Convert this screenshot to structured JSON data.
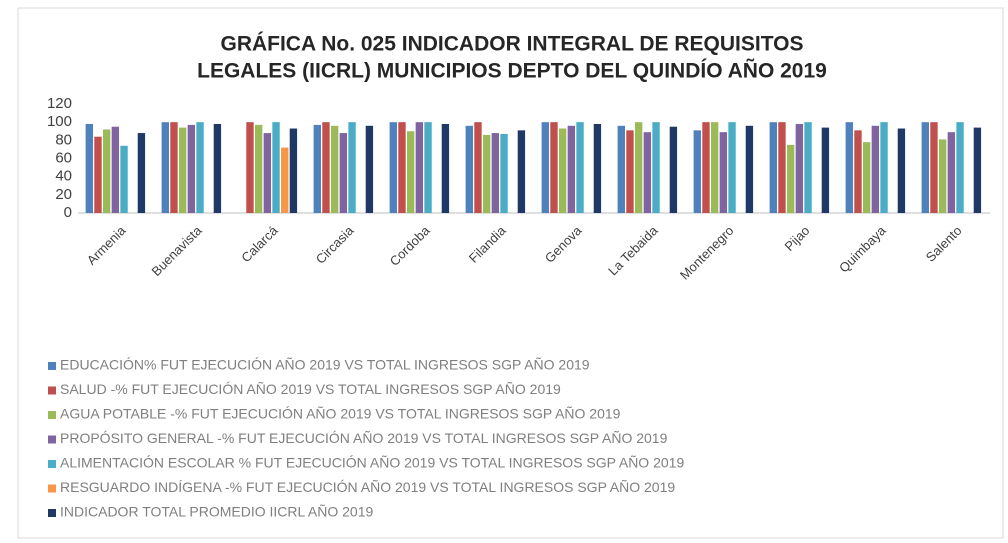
{
  "chart_data": {
    "type": "bar",
    "title": [
      "GRÁFICA  No. 025 INDICADOR INTEGRAL  DE REQUISITOS",
      "LEGALES (IICRL) MUNICIPIOS  DEPTO DEL QUINDÍO AÑO 2019"
    ],
    "categories": [
      "Armenia",
      "Buenavista",
      "Calarcá",
      "Circasia",
      "Cordoba",
      "Filandia",
      "Genova",
      "La Tebaida",
      "Montenegro",
      "Pijao",
      "Quimbaya",
      "Salento"
    ],
    "series": [
      {
        "name": "EDUCACIÓN% FUT EJECUCIÓN AÑO 2019 VS TOTAL INGRESOS SGP AÑO 2019",
        "color": "#4f81bd",
        "values": [
          98,
          100,
          null,
          97,
          100,
          96,
          100,
          96,
          91,
          100,
          100,
          100
        ]
      },
      {
        "name": "SALUD -% FUT EJECUCIÓN AÑO 2019 VS TOTAL INGRESOS SGP AÑO 2019",
        "color": "#c0504d",
        "values": [
          84,
          100,
          100,
          100,
          100,
          100,
          100,
          91,
          100,
          100,
          91,
          100
        ]
      },
      {
        "name": "AGUA POTABLE -% FUT EJECUCIÓN AÑO 2019 VS TOTAL INGRESOS SGP AÑO 2019",
        "color": "#9bbb59",
        "values": [
          92,
          94,
          97,
          96,
          90,
          86,
          93,
          100,
          100,
          75,
          78,
          81
        ]
      },
      {
        "name": "PROPÓSITO GENERAL -% FUT EJECUCIÓN AÑO 2019 VS TOTAL INGRESOS SGP AÑO 2019",
        "color": "#8064a2",
        "values": [
          95,
          97,
          88,
          88,
          100,
          88,
          96,
          89,
          89,
          98,
          96,
          89
        ]
      },
      {
        "name": "ALIMENTACIÓN ESCOLAR % FUT EJECUCIÓN AÑO 2019 VS TOTAL INGRESOS SGP AÑO 2019",
        "color": "#4bacc6",
        "values": [
          74,
          100,
          100,
          100,
          100,
          87,
          100,
          100,
          100,
          100,
          100,
          100
        ]
      },
      {
        "name": "RESGUARDO INDÍGENA -% FUT EJECUCIÓN AÑO 2019 VS TOTAL INGRESOS SGP AÑO 2019",
        "color": "#f79646",
        "values": [
          null,
          null,
          72,
          null,
          null,
          null,
          null,
          null,
          null,
          null,
          null,
          null
        ]
      },
      {
        "name": "INDICADOR TOTAL PROMEDIO IICRL AÑO 2019",
        "color": "#1f3864",
        "values": [
          88,
          98,
          93,
          96,
          98,
          91,
          98,
          95,
          96,
          94,
          93,
          94
        ]
      }
    ],
    "ylim": [
      0,
      120
    ],
    "yticks": [
      0,
      20,
      40,
      60,
      80,
      100,
      120
    ],
    "grid": false
  }
}
